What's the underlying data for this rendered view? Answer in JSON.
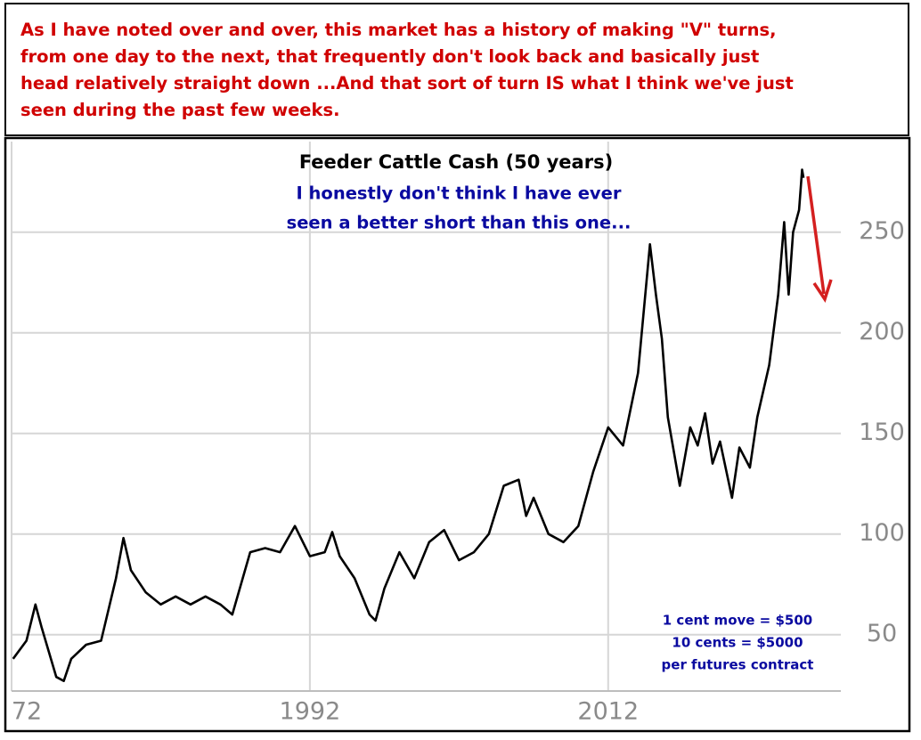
{
  "header_text": [
    "As I have noted over and over, this market has a history of making \"V\" turns,",
    "from one day to the next, that frequently don't look back and basically just",
    "head relatively straight down ...And that sort of turn IS what I think we've just",
    "seen during the past few weeks."
  ],
  "chart_data": {
    "type": "line",
    "title": "Feeder Cattle Cash (50 years)",
    "annotation_lines": [
      "I honestly don't think I have ever",
      "seen a better short than this one..."
    ],
    "note_lines": [
      "1 cent move = $500",
      "10 cents = $5000",
      "per futures contract"
    ],
    "series": [
      {
        "name": "Feeder Cattle Cash",
        "color": "#000000",
        "x": [
          1972.1,
          1973,
          1973.6,
          1974,
          1975,
          1975.5,
          1976,
          1977,
          1978,
          1979,
          1979.5,
          1980,
          1981,
          1982,
          1983,
          1984,
          1985,
          1986,
          1986.8,
          1987.5,
          1988,
          1989,
          1990,
          1991,
          1992,
          1993,
          1993.5,
          1994,
          1995,
          1996,
          1996.4,
          1997,
          1998,
          1999,
          2000,
          2001,
          2002,
          2003,
          2004,
          2005,
          2006,
          2006.5,
          2007,
          2008,
          2009,
          2010,
          2011,
          2012,
          2013,
          2014,
          2014.8,
          2015.2,
          2015.6,
          2016,
          2016.8,
          2017.5,
          2018,
          2018.5,
          2019,
          2019.5,
          2020.3,
          2020.8,
          2021.5,
          2022,
          2022.8,
          2023.4,
          2023.8,
          2024.1,
          2024.4,
          2024.8,
          2025,
          2025.1
        ],
        "values": [
          38,
          47,
          65,
          54,
          29,
          27,
          38,
          45,
          47,
          78,
          98,
          82,
          71,
          65,
          69,
          65,
          69,
          65,
          60,
          78,
          91,
          93,
          91,
          104,
          89,
          91,
          101,
          89,
          78,
          60,
          57,
          73,
          91,
          78,
          96,
          102,
          87,
          91,
          100,
          124,
          127,
          109,
          118,
          100,
          96,
          104,
          131,
          153,
          144,
          180,
          244,
          219,
          197,
          158,
          124,
          153,
          144,
          160,
          135,
          146,
          118,
          143,
          133,
          158,
          184,
          219,
          255,
          219,
          250,
          261,
          281,
          277
        ]
      }
    ],
    "xlim": [
      1972,
      2027.6
    ],
    "xticks": [
      {
        "value": 1972,
        "label": "72"
      },
      1992,
      2012
    ],
    "ylim": [
      22,
      295
    ],
    "yticks": [
      50,
      100,
      150,
      200,
      250
    ],
    "grid": true
  }
}
